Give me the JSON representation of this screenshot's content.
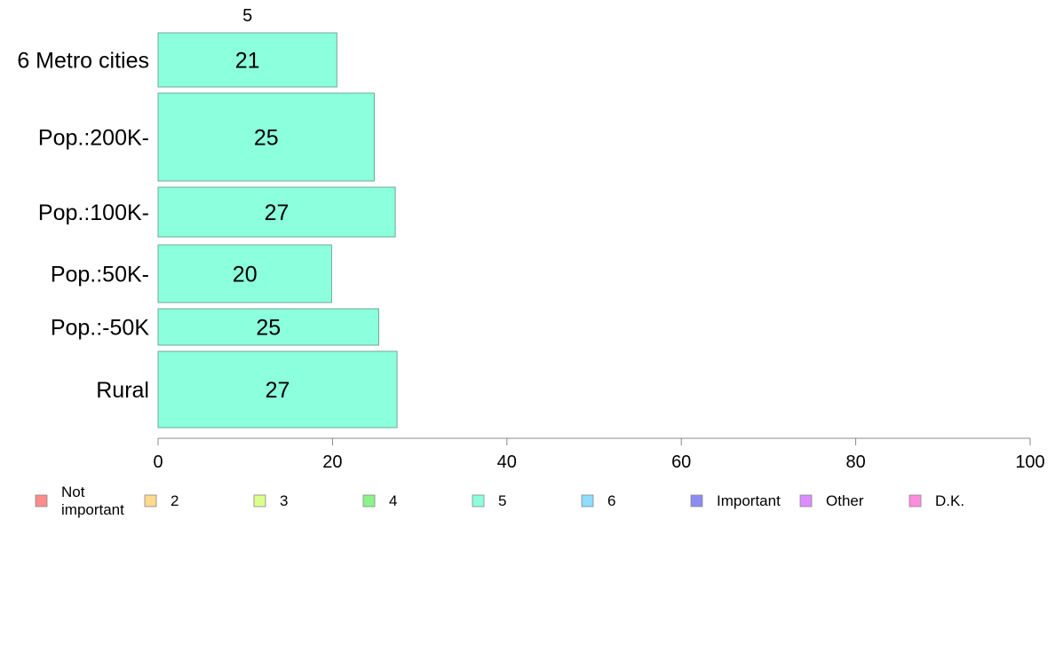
{
  "chart_data": {
    "type": "bar",
    "orientation": "horizontal",
    "stacked": true,
    "column_label": "5",
    "categories": [
      "6 Metro cities",
      "Pop.:200K-",
      "Pop.:100K-",
      "Pop.:50K-",
      "Pop.:-50K",
      "Rural"
    ],
    "series": [
      {
        "name": "5",
        "color": "#8CFFDD",
        "values": [
          20.5,
          24.8,
          27.2,
          19.9,
          25.3,
          27.4
        ],
        "labels": [
          "21",
          "25",
          "27",
          "20",
          "25",
          "27"
        ]
      }
    ],
    "xlim": [
      0,
      100
    ],
    "xticks": [
      0,
      20,
      40,
      60,
      80,
      100
    ],
    "grid": false,
    "legend": {
      "position": "bottom",
      "entries": [
        {
          "label": "Not important",
          "lines": [
            "Not",
            "important"
          ],
          "color": "#FF8C8C"
        },
        {
          "label": "2",
          "lines": [
            "2"
          ],
          "color": "#FFD98C"
        },
        {
          "label": "3",
          "lines": [
            "3"
          ],
          "color": "#DDFF8C"
        },
        {
          "label": "4",
          "lines": [
            "4"
          ],
          "color": "#8CF28C"
        },
        {
          "label": "5",
          "lines": [
            "5"
          ],
          "color": "#8CFFDD"
        },
        {
          "label": "6",
          "lines": [
            "6"
          ],
          "color": "#8CDDFF"
        },
        {
          "label": "Important",
          "lines": [
            "Important"
          ],
          "color": "#8C8CF2"
        },
        {
          "label": "Other",
          "lines": [
            "Other"
          ],
          "color": "#DD8CFF"
        },
        {
          "label": "D.K.",
          "lines": [
            "D.K."
          ],
          "color": "#FF8CDD"
        }
      ]
    }
  }
}
